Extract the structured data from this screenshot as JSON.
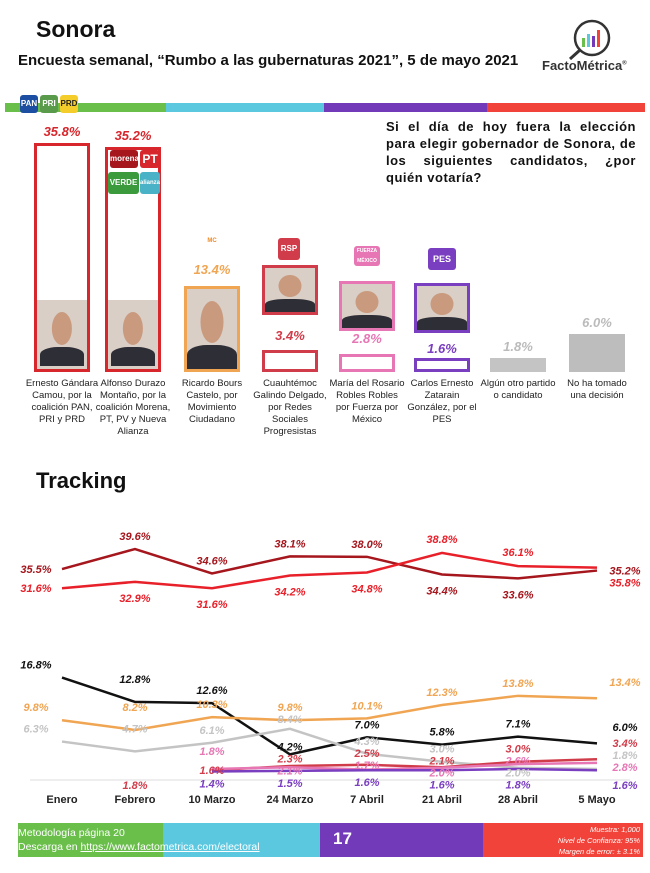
{
  "header": {
    "title": "Sonora",
    "subtitle": "Encuesta semanal, “Rumbo a las gubernaturas 2021”, 5 de mayo 2021",
    "logo_text": "FactoMétrica",
    "logo_registered": "®"
  },
  "colors": {
    "green": "#6abf4b",
    "cyan": "#5bc8e0",
    "purple": "#7239b8",
    "red": "#f2433a"
  },
  "question": "Si el día de hoy fuera la elección para elegir gobernador de Sonora, de los siguientes candidatos, ¿por quién votaría?",
  "party_logos": [
    "PAN",
    "PRI",
    "PRD",
    "morena",
    "PT",
    "VERDE",
    "alianza",
    "MC",
    "RSP",
    "FUERZA MÉXICO",
    "PES"
  ],
  "chart_data": [
    {
      "type": "bar",
      "title": "Si el día de hoy fuera la elección para elegir gobernador de Sonora",
      "ylim": [
        0,
        40
      ],
      "categories": [
        "Ernesto Gándara Camou, por la coalición PAN, PRI y PRD",
        "Alfonso Durazo Montaño, por la coalición Morena, PT, PV y Nueva Alianza",
        "Ricardo Bours Castelo, por Movimiento Ciudadano",
        "Cuauhtémoc Galindo Delgado, por Redes Sociales Progresistas",
        "María del Rosario Robles Robles por Fuerza por México",
        "Carlos Ernesto Zatarain González, por el PES",
        "Algún otro partido o candidato",
        "No ha tomado una decisión"
      ],
      "values": [
        35.8,
        35.2,
        13.4,
        3.4,
        2.8,
        1.6,
        1.8,
        6.0
      ],
      "labels": [
        "35.8%",
        "35.2%",
        "13.4%",
        "3.4%",
        "2.8%",
        "1.6%",
        "1.8%",
        "6.0%"
      ],
      "colors": [
        "#d7262c",
        "#d7262c",
        "#f0a553",
        "#d13c4a",
        "#e677b4",
        "#7a3ec0",
        "#c4c4c4",
        "#bdbdbd"
      ]
    },
    {
      "type": "line",
      "title": "Tracking",
      "x": [
        "Enero",
        "Febrero",
        "10 Marzo",
        "24 Marzo",
        "7 Abril",
        "21 Abril",
        "28 Abril",
        "5 Mayo"
      ],
      "series": [
        {
          "name": "Morena coalición",
          "color": "#a5161d",
          "values": [
            35.5,
            39.6,
            34.6,
            38.1,
            38.0,
            34.4,
            33.6,
            35.2
          ]
        },
        {
          "name": "PAN-PRI-PRD coalición",
          "color": "#e8202a",
          "values": [
            31.6,
            32.9,
            31.6,
            34.2,
            34.8,
            38.8,
            36.1,
            35.8
          ]
        }
      ]
    },
    {
      "type": "line",
      "x": [
        "Enero",
        "Febrero",
        "10 Marzo",
        "24 Marzo",
        "7 Abril",
        "21 Abril",
        "28 Abril",
        "5 Mayo"
      ],
      "series": [
        {
          "name": "No ha tomado una decisión",
          "color": "#111111",
          "values": [
            16.8,
            12.8,
            12.6,
            4.2,
            7.0,
            5.8,
            7.1,
            6.0
          ]
        },
        {
          "name": "Movimiento Ciudadano",
          "color": "#f0a553",
          "values": [
            9.8,
            8.2,
            10.3,
            9.8,
            10.1,
            12.3,
            13.8,
            13.4
          ]
        },
        {
          "name": "Algún otro",
          "color": "#c4c4c4",
          "values": [
            6.3,
            4.7,
            6.1,
            8.4,
            4.3,
            3.0,
            2.0,
            1.8
          ]
        },
        {
          "name": "RSP",
          "color": "#d13c4a",
          "values": [
            null,
            1.8,
            1.6,
            2.3,
            2.5,
            2.1,
            3.0,
            3.4
          ]
        },
        {
          "name": "Fuerza por México",
          "color": "#e677b4",
          "values": [
            null,
            null,
            1.8,
            2.1,
            1.7,
            2.0,
            2.6,
            2.8
          ]
        },
        {
          "name": "PES",
          "color": "#7a3ec0",
          "values": [
            null,
            null,
            1.4,
            1.5,
            1.6,
            1.6,
            1.8,
            1.6
          ]
        }
      ]
    }
  ],
  "tracking_title": "Tracking",
  "footer": {
    "methodology": "Metodología página 20",
    "download_prefix": "Descarga en ",
    "download_link": "https://www.factometrica.com/electoral",
    "page": "17",
    "sample": "Muestra: 1,000",
    "confidence": "Nivel de Confianza: 95%",
    "margin": "Margen de error: ± 3.1%"
  }
}
